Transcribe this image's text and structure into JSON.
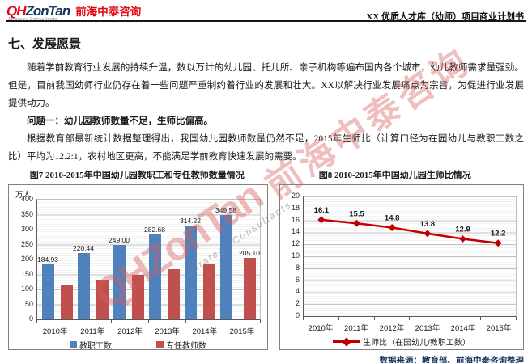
{
  "header": {
    "logo_qh": "QH",
    "logo_zontan": "ZonTan",
    "logo_subtitle": "Strategy Consultants",
    "logo_cn": "前海中泰咨询",
    "doc_title": "XX 优质人才库（幼师）项目商业计划书"
  },
  "section_title": "七、发展愿景",
  "paragraphs": {
    "p1": "随着学前教育行业发展的持续升温，数以万计的幼儿园、托儿所、亲子机构等遍布国内各个城市，幼儿教师需求量强劲。但是，目前我国幼师行业仍存在着一些问题严重制约着行业的发展和壮大。XX以解决行业发展痛点为宗旨，为促进行业发展提供动力。",
    "problem": "问题一：幼儿园教师数量不足，生师比偏高。",
    "p2": "根据教育部最新统计数据整理得出，我国幼儿园教师数量仍然不足，2015年生师比（计算口径为在园幼儿与教职工数之比）平均为12.2:1，农村地区更高，不能满足学前教育快速发展的需要。"
  },
  "figures": {
    "fig7_title": "图7 2010-2015年中国幼儿园教职工和专任教师数量情况",
    "fig8_title": "图8 2010-2015年中国幼儿园生师比情况"
  },
  "chart_data": [
    {
      "type": "bar",
      "title": "图7 2010-2015年中国幼儿园教职工和专任教师数量情况",
      "unit_label": "万人",
      "categories": [
        "2010年",
        "2011年",
        "2012年",
        "2013年",
        "2014年",
        "2015年"
      ],
      "series": [
        {
          "name": "教职工数",
          "color": "#4F81BD",
          "values": [
            184.93,
            220.44,
            249.0,
            282.68,
            314.22,
            349.58
          ],
          "labels": [
            "184.93",
            "220.44",
            "249.00",
            "282.68",
            "314.22",
            "349.58"
          ]
        },
        {
          "name": "专任教师数",
          "color": "#C0504D",
          "values": [
            114.4,
            131.6,
            147.9,
            166.3,
            184.4,
            205.1
          ],
          "labels": [
            "",
            "",
            "",
            "",
            "",
            "205.10"
          ]
        }
      ],
      "ylim": [
        0,
        400
      ],
      "ytick_step": 50,
      "grid": true,
      "legend_position": "bottom"
    },
    {
      "type": "line",
      "title": "图8 2010-2015年中国幼儿园生师比情况",
      "categories": [
        "2010年",
        "2011年",
        "2012年",
        "2013年",
        "2014年",
        "2015年"
      ],
      "series": [
        {
          "name": "生师比（在园幼儿/教职工数）",
          "color": "#C00000",
          "values": [
            16.1,
            15.5,
            14.8,
            13.8,
            12.9,
            12.2
          ],
          "labels": [
            "16.1",
            "15.5",
            "14.8",
            "13.8",
            "12.9",
            "12.2"
          ]
        }
      ],
      "ylim": [
        0,
        20
      ],
      "ytick_step": 2,
      "grid": true,
      "legend_position": "bottom"
    }
  ],
  "source_note": "数据来源：教育部、前海中泰咨询整理",
  "watermark": {
    "text_en": "QHZonTan",
    "text_sub": "Strategy Consultants",
    "text_cn": "前海中泰咨询"
  },
  "colors": {
    "logo_red": "#E30613",
    "logo_navy": "#16365C",
    "bar_blue": "#4F81BD",
    "bar_red": "#C0504D",
    "line_red": "#C00000",
    "source_text": "#17365D",
    "header_rule": "#161616"
  }
}
